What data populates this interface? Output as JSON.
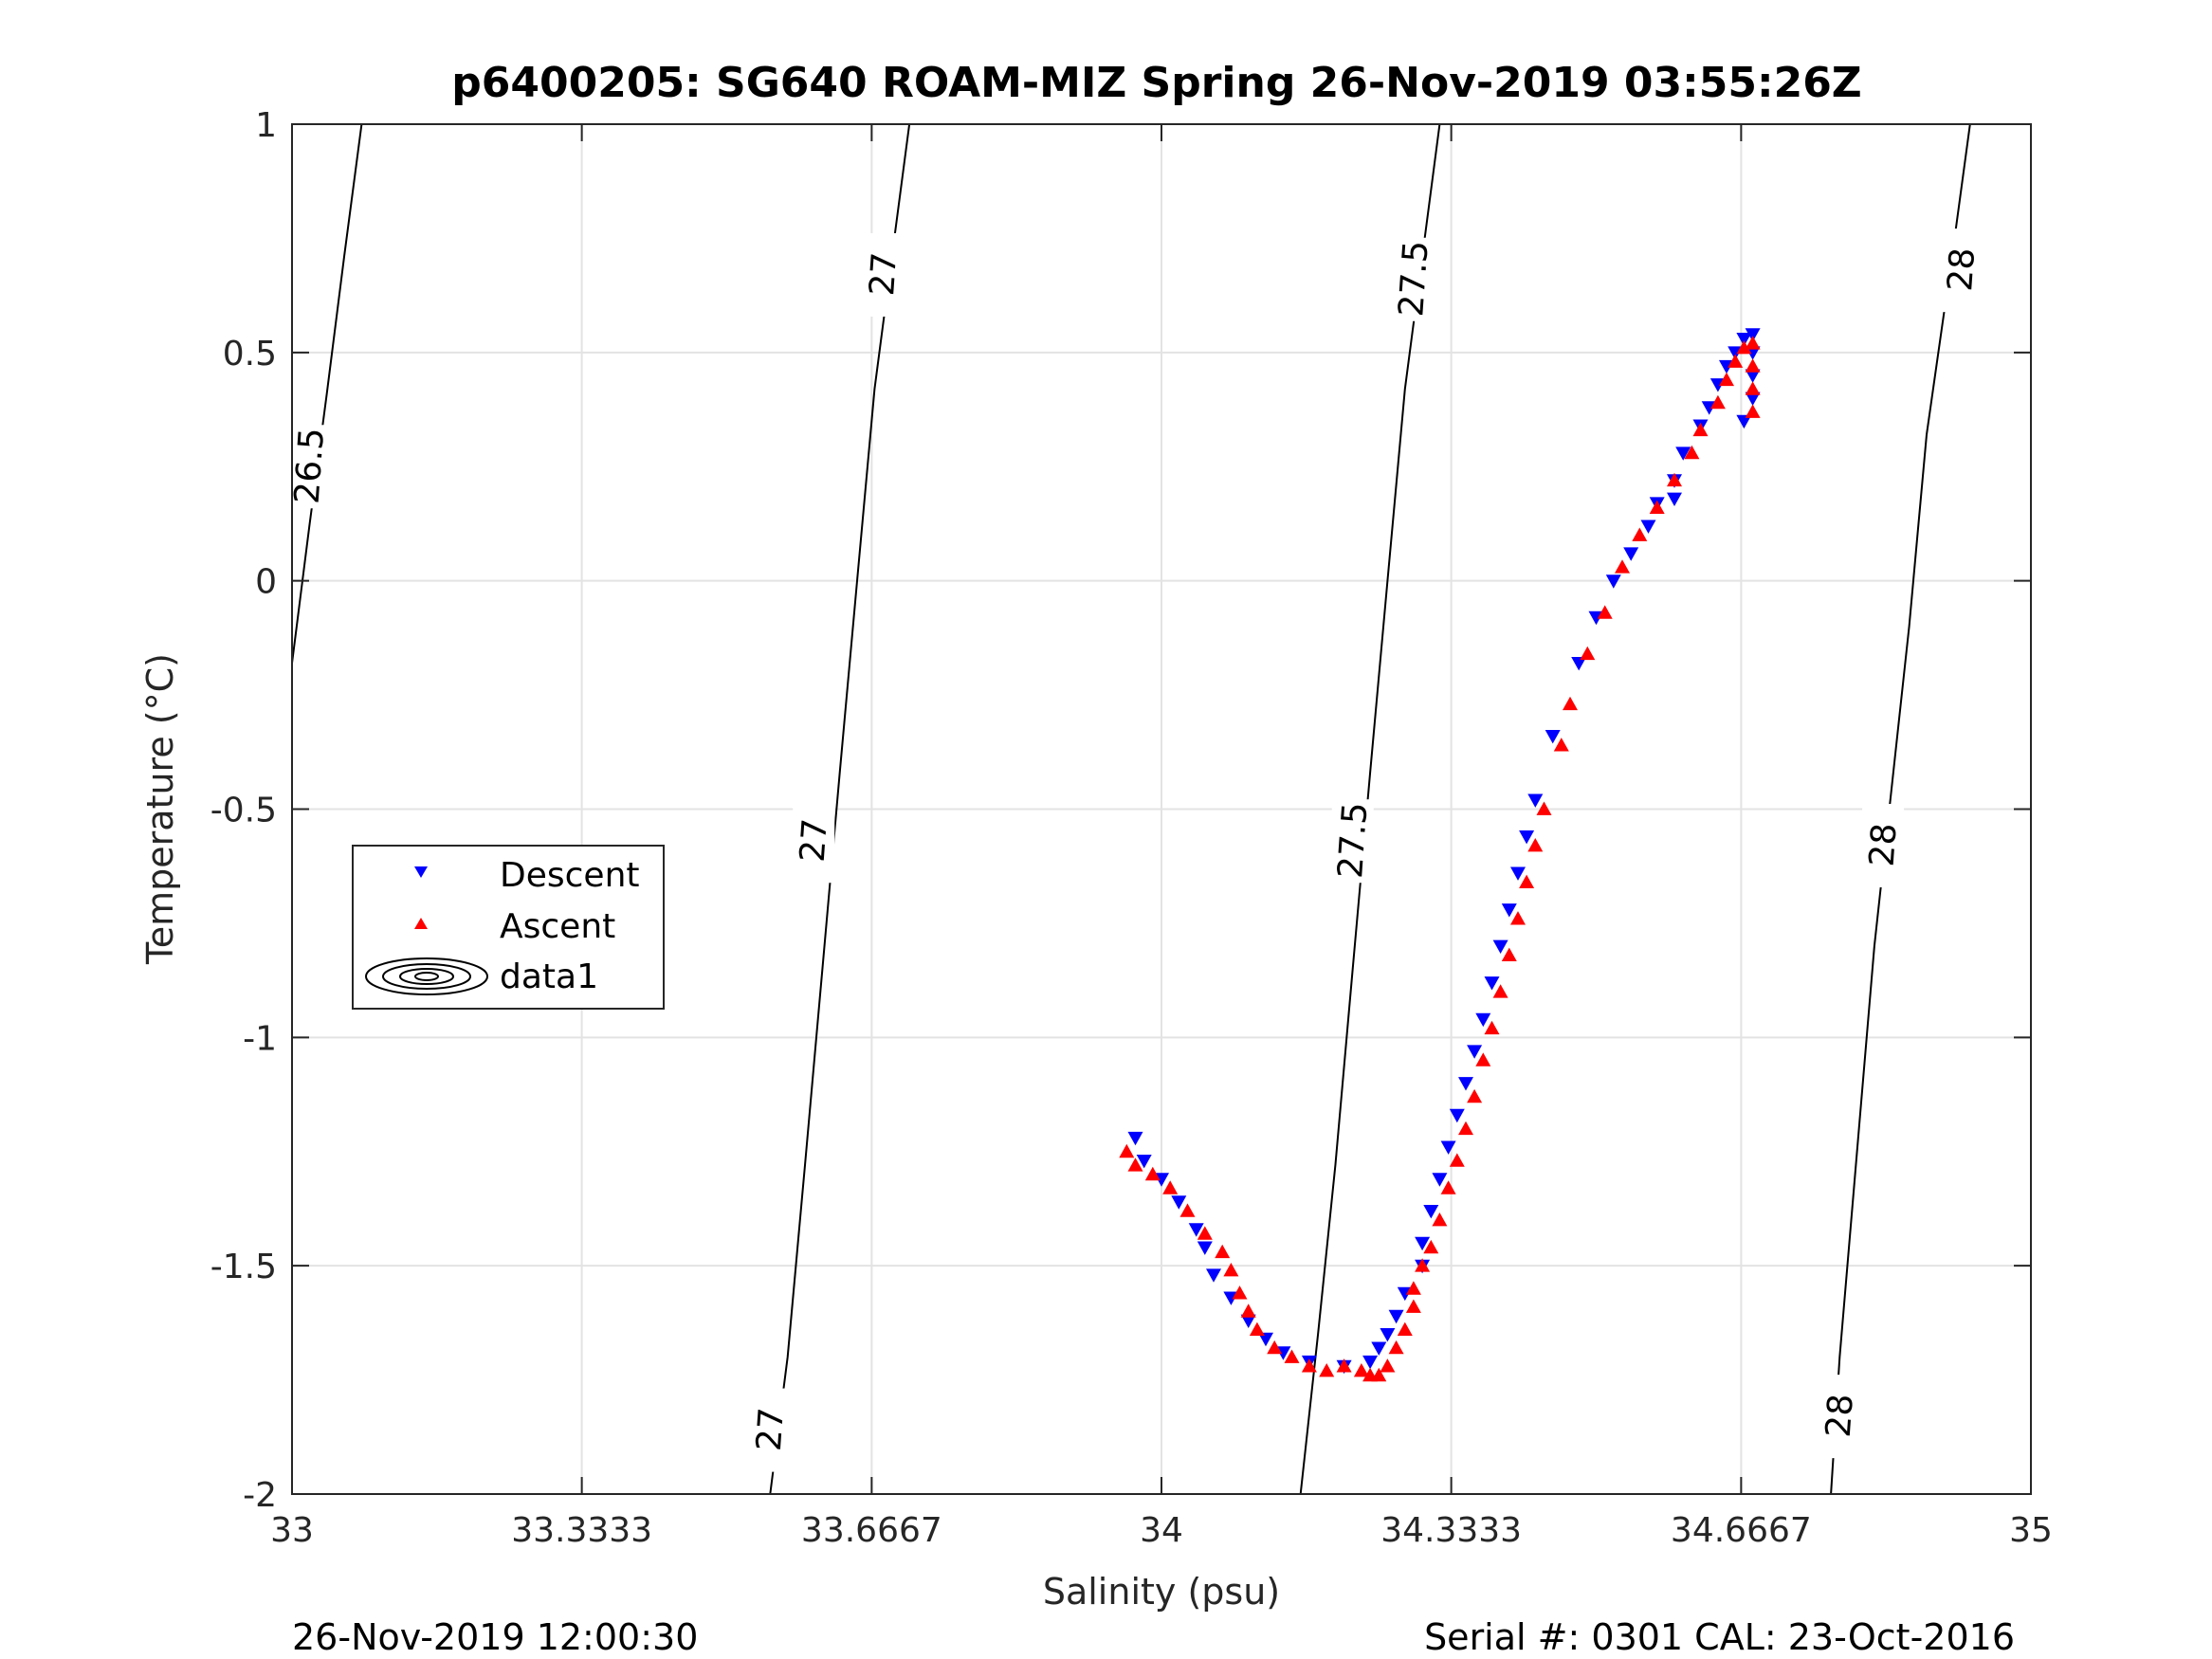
{
  "chart_data": {
    "type": "scatter",
    "title": "p6400205: SG640 ROAM-MIZ Spring 26-Nov-2019 03:55:26Z",
    "xlabel": "Salinity (psu)",
    "ylabel": "Temperature (°C)",
    "xlim": [
      33,
      35
    ],
    "ylim": [
      -2,
      1
    ],
    "xticks": [
      33,
      33.3333,
      33.6667,
      34,
      34.3333,
      34.6667,
      35
    ],
    "xtick_labels": [
      "33",
      "33.3333",
      "33.6667",
      "34",
      "34.3333",
      "34.6667",
      "35"
    ],
    "yticks": [
      -2,
      -1.5,
      -1,
      -0.5,
      0,
      0.5,
      1
    ],
    "ytick_labels": [
      "-2",
      "-1.5",
      "-1",
      "-0.5",
      "0",
      "0.5",
      "1"
    ],
    "grid": true,
    "legend_position": "left-middle",
    "series": [
      {
        "name": "Descent",
        "marker": "triangle-down",
        "color": "#0000ff",
        "points": [
          [
            33.97,
            -1.22
          ],
          [
            33.98,
            -1.27
          ],
          [
            34.0,
            -1.31
          ],
          [
            34.02,
            -1.36
          ],
          [
            34.04,
            -1.42
          ],
          [
            34.05,
            -1.46
          ],
          [
            34.06,
            -1.52
          ],
          [
            34.08,
            -1.57
          ],
          [
            34.1,
            -1.62
          ],
          [
            34.12,
            -1.66
          ],
          [
            34.14,
            -1.69
          ],
          [
            34.17,
            -1.71
          ],
          [
            34.21,
            -1.72
          ],
          [
            34.24,
            -1.71
          ],
          [
            34.25,
            -1.68
          ],
          [
            34.26,
            -1.65
          ],
          [
            34.27,
            -1.61
          ],
          [
            34.28,
            -1.56
          ],
          [
            34.3,
            -1.5
          ],
          [
            34.3,
            -1.45
          ],
          [
            34.31,
            -1.38
          ],
          [
            34.32,
            -1.31
          ],
          [
            34.33,
            -1.24
          ],
          [
            34.34,
            -1.17
          ],
          [
            34.35,
            -1.1
          ],
          [
            34.36,
            -1.03
          ],
          [
            34.37,
            -0.96
          ],
          [
            34.38,
            -0.88
          ],
          [
            34.39,
            -0.8
          ],
          [
            34.4,
            -0.72
          ],
          [
            34.41,
            -0.64
          ],
          [
            34.42,
            -0.56
          ],
          [
            34.43,
            -0.48
          ],
          [
            34.45,
            -0.34
          ],
          [
            34.48,
            -0.18
          ],
          [
            34.5,
            -0.08
          ],
          [
            34.52,
            0.0
          ],
          [
            34.54,
            0.06
          ],
          [
            34.56,
            0.12
          ],
          [
            34.57,
            0.17
          ],
          [
            34.59,
            0.22
          ],
          [
            34.6,
            0.28
          ],
          [
            34.62,
            0.34
          ],
          [
            34.63,
            0.38
          ],
          [
            34.64,
            0.43
          ],
          [
            34.65,
            0.47
          ],
          [
            34.66,
            0.5
          ],
          [
            34.67,
            0.53
          ],
          [
            34.68,
            0.54
          ],
          [
            34.68,
            0.5
          ],
          [
            34.68,
            0.45
          ],
          [
            34.68,
            0.4
          ],
          [
            34.67,
            0.35
          ],
          [
            34.59,
            0.18
          ]
        ]
      },
      {
        "name": "Ascent",
        "marker": "triangle-up",
        "color": "#ff0000",
        "points": [
          [
            33.96,
            -1.25
          ],
          [
            33.97,
            -1.28
          ],
          [
            33.99,
            -1.3
          ],
          [
            34.01,
            -1.33
          ],
          [
            34.03,
            -1.38
          ],
          [
            34.05,
            -1.43
          ],
          [
            34.07,
            -1.47
          ],
          [
            34.08,
            -1.51
          ],
          [
            34.09,
            -1.56
          ],
          [
            34.1,
            -1.6
          ],
          [
            34.11,
            -1.64
          ],
          [
            34.13,
            -1.68
          ],
          [
            34.15,
            -1.7
          ],
          [
            34.17,
            -1.72
          ],
          [
            34.19,
            -1.73
          ],
          [
            34.21,
            -1.72
          ],
          [
            34.23,
            -1.73
          ],
          [
            34.24,
            -1.74
          ],
          [
            34.25,
            -1.74
          ],
          [
            34.26,
            -1.72
          ],
          [
            34.27,
            -1.68
          ],
          [
            34.28,
            -1.64
          ],
          [
            34.29,
            -1.59
          ],
          [
            34.29,
            -1.55
          ],
          [
            34.3,
            -1.5
          ],
          [
            34.31,
            -1.46
          ],
          [
            34.32,
            -1.4
          ],
          [
            34.33,
            -1.33
          ],
          [
            34.34,
            -1.27
          ],
          [
            34.35,
            -1.2
          ],
          [
            34.36,
            -1.13
          ],
          [
            34.37,
            -1.05
          ],
          [
            34.38,
            -0.98
          ],
          [
            34.39,
            -0.9
          ],
          [
            34.4,
            -0.82
          ],
          [
            34.41,
            -0.74
          ],
          [
            34.42,
            -0.66
          ],
          [
            34.43,
            -0.58
          ],
          [
            34.44,
            -0.5
          ],
          [
            34.46,
            -0.36
          ],
          [
            34.47,
            -0.27
          ],
          [
            34.49,
            -0.16
          ],
          [
            34.51,
            -0.07
          ],
          [
            34.53,
            0.03
          ],
          [
            34.55,
            0.1
          ],
          [
            34.57,
            0.16
          ],
          [
            34.59,
            0.22
          ],
          [
            34.61,
            0.28
          ],
          [
            34.62,
            0.33
          ],
          [
            34.64,
            0.39
          ],
          [
            34.65,
            0.44
          ],
          [
            34.66,
            0.48
          ],
          [
            34.67,
            0.51
          ],
          [
            34.68,
            0.52
          ],
          [
            34.68,
            0.47
          ],
          [
            34.68,
            0.42
          ],
          [
            34.68,
            0.37
          ]
        ]
      }
    ],
    "contours": [
      {
        "label": "26.5",
        "points": [
          [
            33.0,
            -0.18
          ],
          [
            33.02,
            0.12
          ],
          [
            33.04,
            0.41
          ],
          [
            33.06,
            0.71
          ],
          [
            33.08,
            1.0
          ]
        ],
        "label_positions": [
          [
            33.02,
            0.25
          ]
        ]
      },
      {
        "label": "27",
        "points": [
          [
            33.55,
            -2.0
          ],
          [
            33.57,
            -1.7
          ],
          [
            33.59,
            -1.28
          ],
          [
            33.61,
            -0.85
          ],
          [
            33.63,
            -0.42
          ],
          [
            33.65,
            0.0
          ],
          [
            33.67,
            0.42
          ],
          [
            33.69,
            0.71
          ],
          [
            33.71,
            1.0
          ]
        ],
        "label_positions": [
          [
            33.55,
            -1.86
          ],
          [
            33.6,
            -0.57
          ],
          [
            33.68,
            0.67
          ]
        ]
      },
      {
        "label": "27.5",
        "points": [
          [
            34.16,
            -2.0
          ],
          [
            34.18,
            -1.65
          ],
          [
            34.2,
            -1.28
          ],
          [
            34.22,
            -0.85
          ],
          [
            34.24,
            -0.42
          ],
          [
            34.26,
            0.0
          ],
          [
            34.28,
            0.42
          ],
          [
            34.3,
            0.71
          ],
          [
            34.32,
            1.0
          ]
        ],
        "label_positions": [
          [
            34.22,
            -0.57
          ],
          [
            34.29,
            0.66
          ]
        ]
      },
      {
        "label": "28",
        "points": [
          [
            34.77,
            -2.0
          ],
          [
            34.78,
            -1.7
          ],
          [
            34.8,
            -1.25
          ],
          [
            34.82,
            -0.8
          ],
          [
            34.84,
            -0.45
          ],
          [
            34.86,
            -0.1
          ],
          [
            34.88,
            0.32
          ],
          [
            34.91,
            0.72
          ],
          [
            34.93,
            1.0
          ]
        ],
        "label_positions": [
          [
            34.78,
            -1.83
          ],
          [
            34.83,
            -0.58
          ],
          [
            34.92,
            0.68
          ]
        ]
      }
    ],
    "legend": [
      "Descent",
      "Ascent",
      "data1"
    ]
  },
  "footer": {
    "left": "26-Nov-2019 12:00:30",
    "right": "Serial #: 0301  CAL: 23-Oct-2016"
  }
}
